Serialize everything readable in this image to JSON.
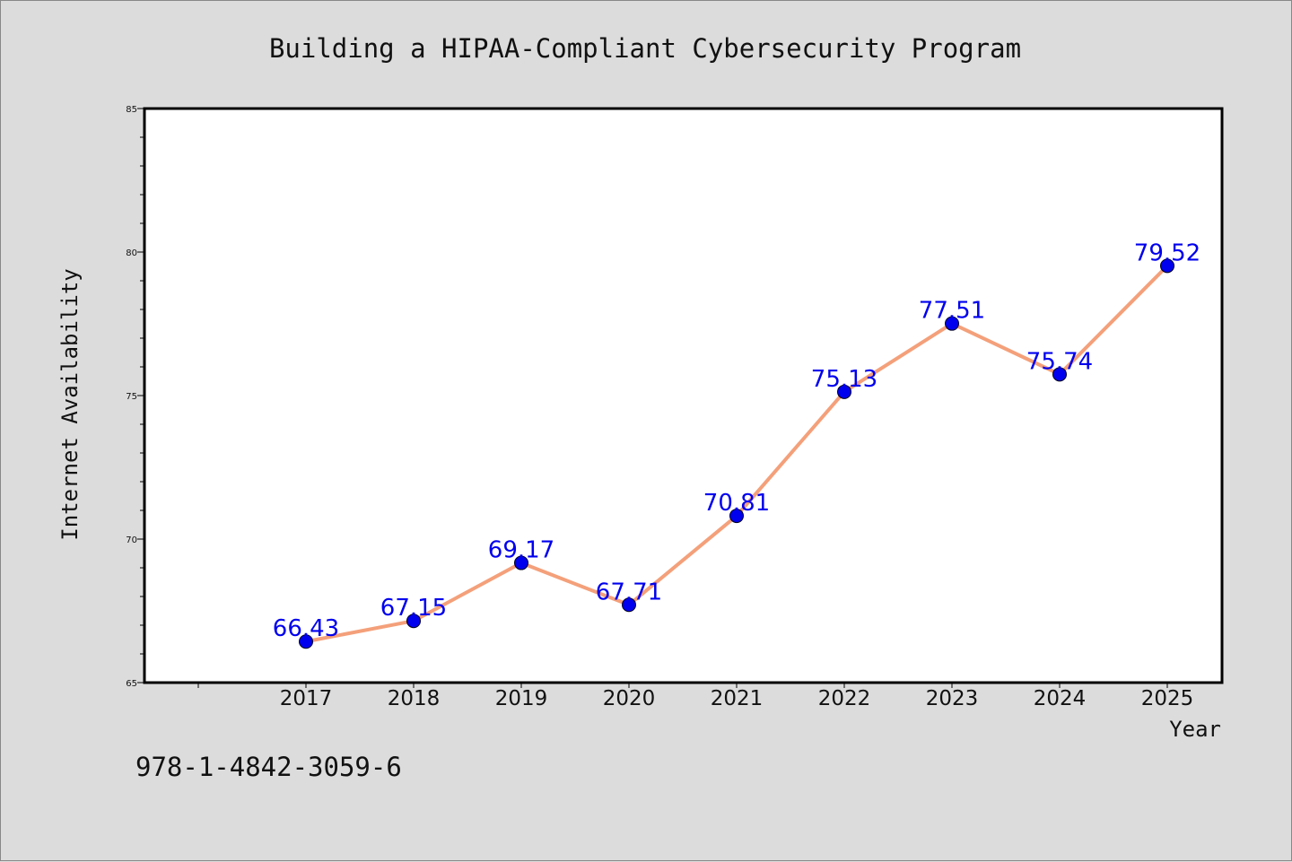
{
  "chart_data": {
    "type": "line",
    "title": "Building a HIPAA-Compliant Cybersecurity Program",
    "xlabel": "Year",
    "ylabel": "Internet Availability",
    "categories": [
      "2017",
      "2018",
      "2019",
      "2020",
      "2021",
      "2022",
      "2023",
      "2024",
      "2025"
    ],
    "values": [
      66.43,
      67.15,
      69.17,
      67.71,
      70.81,
      75.13,
      77.51,
      75.74,
      79.52
    ],
    "data_labels": [
      "66.43",
      "67.15",
      "69.17",
      "67.71",
      "70.81",
      "75.13",
      "77.51",
      "75.74",
      "79.52"
    ],
    "ylim": [
      65,
      85
    ],
    "yticks": [
      65,
      70,
      75,
      80,
      85
    ],
    "ytick_labels": [
      "65",
      "70",
      "75",
      "80",
      "85"
    ],
    "grid": false,
    "line_color": "#f4a07a",
    "marker_color": "#0000ee",
    "label_color": "#0000ee"
  },
  "footer": {
    "isbn": "978-1-4842-3059-6"
  }
}
